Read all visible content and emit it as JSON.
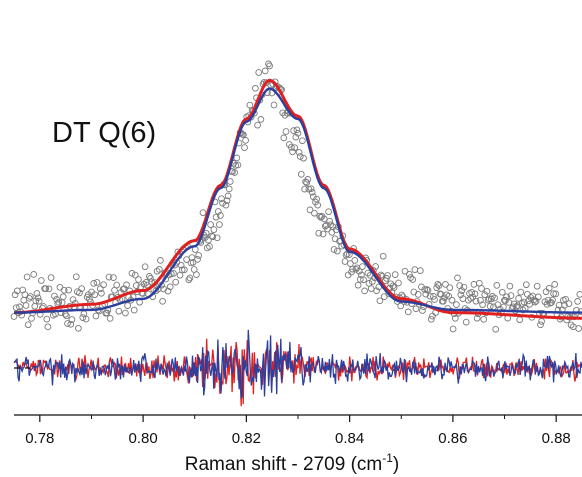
{
  "chart_data": {
    "type": "scatter",
    "title": "",
    "annotation": "DT Q(6)",
    "xlabel": "Raman shift - 2709 (cm",
    "xlabel_sup": "-1",
    "xlabel_tail": ")",
    "ylabel": "",
    "xlim": [
      0.775,
      0.885
    ],
    "ylim": [
      -0.35,
      1.15
    ],
    "x_ticks": [
      0.78,
      0.8,
      0.82,
      0.84,
      0.86,
      0.88
    ],
    "x_tick_labels": [
      "0.78",
      "0.80",
      "0.82",
      "0.84",
      "0.86",
      "0.88"
    ],
    "y_axis_visible": false,
    "grid": false,
    "residual_baseline": -0.18,
    "colors": {
      "data": "#7a7a7a",
      "fit_1": "#e0201e",
      "fit_2": "#2b3f9e",
      "baseline": "#111111"
    },
    "peak": {
      "center": 0.8245,
      "amplitude": 0.83,
      "width": 0.0085,
      "offset": 0.02
    },
    "series": [
      {
        "kind": "data-points",
        "x_range": [
          0.775,
          0.885
        ]
      },
      {
        "kind": "fit",
        "color_key": "fit_1",
        "x": [
          0.775,
          0.79,
          0.8,
          0.81,
          0.815,
          0.82,
          0.8245,
          0.83,
          0.835,
          0.84,
          0.85,
          0.86,
          0.885
        ],
        "y": [
          0.02,
          0.05,
          0.1,
          0.28,
          0.48,
          0.72,
          0.86,
          0.73,
          0.48,
          0.25,
          0.07,
          0.02,
          0.0
        ]
      },
      {
        "kind": "fit",
        "color_key": "fit_2",
        "x": [
          0.775,
          0.79,
          0.8,
          0.81,
          0.815,
          0.82,
          0.8245,
          0.83,
          0.835,
          0.84,
          0.85,
          0.86,
          0.885
        ],
        "y": [
          0.02,
          0.03,
          0.07,
          0.26,
          0.47,
          0.71,
          0.83,
          0.72,
          0.47,
          0.24,
          0.06,
          0.03,
          0.02
        ]
      }
    ]
  }
}
